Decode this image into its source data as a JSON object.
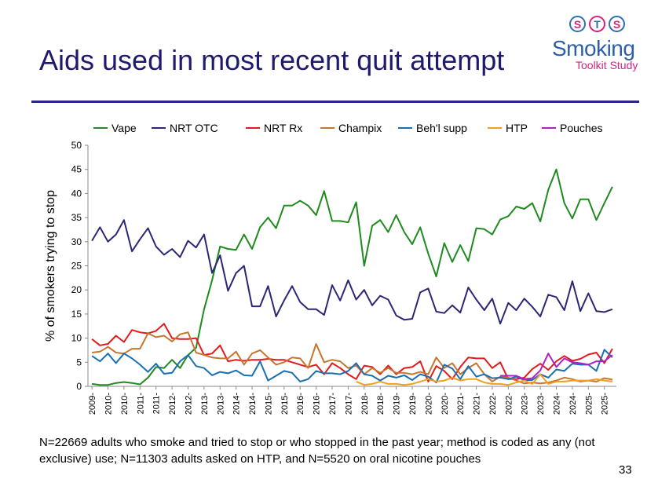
{
  "title": "Aids used in most recent quit attempt",
  "logo": {
    "letters": [
      "S",
      "T",
      "S"
    ],
    "word": "Smoking",
    "sub": "Toolkit Study"
  },
  "footnote": "N=22669 adults who smoke and tried to stop or who stopped in the past year; method is coded as any (not exclusive) use; N=11303 adults asked on HTP, and N=5520 on oral nicotine pouches",
  "page_number": "33",
  "colors": {
    "title": "#1f1a6e",
    "Vape": "#1f8a1f",
    "NRT OTC": "#2b2775",
    "NRT Rx": "#e31a1c",
    "Champix": "#c87530",
    "Beh'l supp": "#1a6fb0",
    "HTP": "#f0a020",
    "Pouches": "#b020c8"
  },
  "chart_data": {
    "type": "line",
    "ylabel": "% of smokers trying to stop",
    "ylim": [
      0,
      50
    ],
    "yticks": [
      0,
      5,
      10,
      15,
      20,
      25,
      30,
      35,
      40,
      45,
      50
    ],
    "n_points": 66,
    "xtick_labels": [
      "2009-",
      "2010-",
      "2010-",
      "2011-",
      "2011-",
      "2012-",
      "2012-",
      "2013-",
      "2013-",
      "2014-",
      "2014-",
      "2015-",
      "2015-",
      "2016-",
      "2016-",
      "2017-",
      "2017-",
      "2018-",
      "2018-",
      "2019-",
      "2019-",
      "2020-",
      "2020-",
      "2021-",
      "2021-",
      "2022-",
      "2022-",
      "2023-",
      "2023-",
      "2024-",
      "2024-",
      "2025-",
      "2025-"
    ],
    "legend": [
      "Vape",
      "NRT OTC",
      "NRT Rx",
      "Champix",
      "Beh'l supp",
      "HTP",
      "Pouches"
    ],
    "legend_position": "top",
    "series": [
      {
        "name": "Vape",
        "start": 0,
        "values": [
          0.5,
          0.3,
          0.3,
          0.7,
          0.9,
          0.7,
          0.4,
          1.8,
          4.0,
          3.8,
          5.5,
          3.8,
          6.5,
          8.0,
          16.0,
          22.0,
          29.0,
          28.5,
          28.3,
          31.5,
          28.5,
          33.0,
          35.0,
          32.8,
          37.5,
          37.5,
          38.5,
          37.5,
          35.5,
          40.5,
          34.3,
          34.3,
          34.0,
          38.2,
          25.0,
          33.3,
          34.5,
          32.0,
          35.5,
          32.0,
          29.5,
          33.0,
          27.5,
          22.8,
          29.7,
          25.8,
          29.3,
          26.0,
          32.8,
          32.6,
          31.5,
          34.6,
          35.3,
          37.3,
          36.8,
          38.0,
          34.2,
          40.8,
          45.0,
          38.0,
          34.8,
          38.8,
          38.8,
          34.5,
          38.0,
          41.4
        ]
      },
      {
        "name": "NRT OTC",
        "start": 0,
        "values": [
          30.2,
          33.0,
          30.0,
          31.5,
          34.5,
          28.0,
          30.5,
          32.8,
          29.0,
          27.3,
          28.5,
          26.8,
          30.2,
          28.8,
          31.5,
          23.5,
          27.2,
          19.8,
          23.5,
          25.0,
          16.6,
          16.6,
          20.8,
          14.5,
          17.8,
          20.8,
          17.5,
          16.0,
          16.0,
          14.8,
          21.0,
          17.8,
          22.0,
          18.0,
          20.0,
          16.8,
          18.8,
          18.0,
          14.7,
          13.8,
          14.0,
          19.5,
          20.3,
          15.5,
          15.2,
          16.8,
          15.3,
          20.5,
          18.0,
          15.8,
          18.2,
          13.0,
          17.3,
          15.8,
          18.2,
          16.5,
          14.5,
          19.0,
          18.5,
          15.8,
          21.8,
          15.6,
          19.3,
          15.6,
          15.4,
          16.0
        ]
      },
      {
        "name": "NRT Rx",
        "start": 0,
        "values": [
          9.8,
          8.5,
          8.8,
          10.5,
          9.2,
          11.7,
          11.2,
          11.0,
          11.5,
          13.0,
          10.0,
          9.8,
          9.8,
          10.0,
          6.5,
          6.8,
          8.5,
          5.2,
          5.5,
          5.3,
          5.5,
          5.5,
          5.7,
          5.5,
          5.5,
          5.0,
          4.5,
          4.0,
          4.5,
          2.5,
          4.8,
          3.8,
          2.5,
          1.5,
          4.3,
          4.0,
          2.5,
          4.3,
          2.5,
          3.8,
          4.0,
          5.2,
          1.0,
          4.2,
          3.2,
          1.5,
          4.0,
          6.0,
          5.8,
          5.8,
          3.8,
          5.0,
          1.5,
          1.5,
          1.8,
          3.6,
          4.7,
          3.4,
          5.2,
          6.3,
          5.3,
          5.7,
          6.6,
          7.0,
          4.8,
          7.8
        ]
      },
      {
        "name": "Champix",
        "start": 0,
        "values": [
          7.0,
          7.2,
          8.2,
          7.0,
          6.8,
          7.8,
          7.8,
          11.0,
          10.2,
          10.5,
          9.3,
          10.8,
          11.2,
          7.0,
          6.5,
          6.0,
          5.8,
          5.8,
          7.2,
          4.5,
          6.8,
          7.5,
          6.0,
          4.5,
          5.0,
          6.0,
          5.8,
          3.8,
          8.8,
          5.0,
          5.5,
          5.2,
          3.8,
          4.3,
          2.5,
          3.8,
          2.8,
          3.8,
          2.8,
          2.8,
          2.5,
          3.0,
          2.5,
          6.0,
          3.8,
          4.8,
          2.5,
          3.8,
          4.8,
          2.5,
          1.0,
          2.0,
          1.8,
          1.2,
          0.6,
          0.8,
          0.6,
          0.8,
          1.2,
          1.8,
          1.5,
          1.0,
          1.2,
          1.0,
          1.7,
          1.4
        ]
      },
      {
        "name": "Beh'l supp",
        "start": 0,
        "values": [
          6.3,
          5.2,
          6.8,
          4.8,
          6.8,
          5.8,
          4.5,
          3.0,
          4.7,
          2.6,
          2.8,
          5.2,
          6.5,
          4.2,
          3.8,
          2.3,
          3.0,
          2.7,
          3.3,
          2.3,
          2.2,
          5.2,
          1.2,
          2.2,
          3.2,
          2.8,
          1.0,
          1.5,
          3.2,
          2.7,
          2.7,
          2.5,
          3.2,
          4.8,
          2.5,
          2.2,
          1.2,
          2.2,
          1.8,
          2.3,
          1.3,
          2.5,
          2.0,
          0.8,
          4.5,
          3.7,
          1.5,
          4.2,
          2.0,
          2.5,
          1.7,
          1.8,
          1.5,
          2.0,
          1.3,
          1.3,
          2.5,
          1.8,
          3.5,
          3.2,
          4.7,
          4.5,
          4.5,
          3.2,
          7.6,
          6.0
        ]
      },
      {
        "name": "HTP",
        "start": 33,
        "values": [
          1.0,
          0.3,
          0.5,
          1.0,
          0.5,
          0.5,
          0.3,
          0.5,
          1.0,
          1.5,
          1.0,
          1.2,
          1.8,
          1.2,
          1.5,
          1.5,
          0.8,
          0.5,
          0.5,
          0.3,
          0.8,
          1.2,
          0.5,
          2.5,
          0.5,
          1.0,
          1.0,
          1.2,
          1.2,
          1.2,
          1.5,
          1.2,
          1.0
        ]
      },
      {
        "name": "Pouches",
        "start": 51,
        "values": [
          2.2,
          2.2,
          2.2,
          1.5,
          1.7,
          3.3,
          6.8,
          4.0,
          5.8,
          5.0,
          4.8,
          4.5,
          5.2,
          5.2,
          6.5
        ]
      }
    ]
  }
}
